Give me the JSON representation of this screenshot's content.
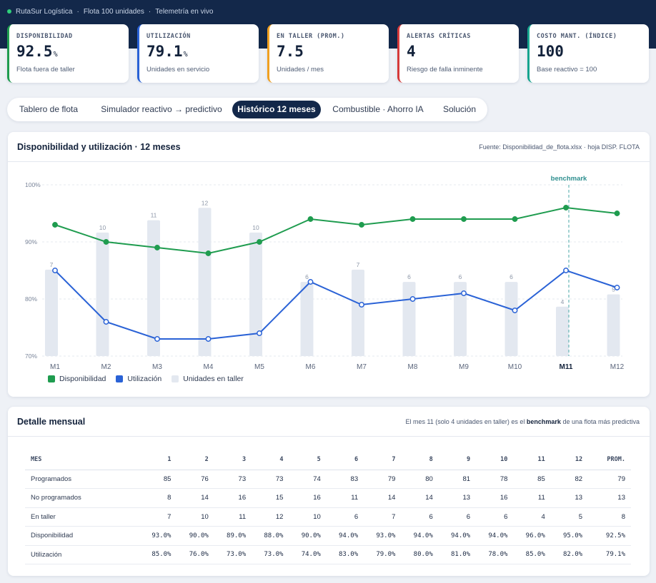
{
  "header": {
    "company": "RutaSur Logística",
    "fleet": "Flota 100 unidades",
    "mode": "Telemetría en vivo",
    "separator": "·"
  },
  "kpis": [
    {
      "label": "DISPONIBILIDAD",
      "value": "92.5",
      "unit": "%",
      "sub": "Flota fuera de taller",
      "color": "#1f9c4f"
    },
    {
      "label": "UTILIZACIÓN",
      "value": "79.1",
      "unit": "%",
      "sub": "Unidades en servicio",
      "color": "#2a62d6"
    },
    {
      "label": "EN TALLER (PROM.)",
      "value": "7.5",
      "unit": "",
      "sub": "Unidades / mes",
      "color": "#f0a020"
    },
    {
      "label": "ALERTAS CRÍTICAS",
      "value": "4",
      "unit": "",
      "sub": "Riesgo de falla inminente",
      "color": "#d63a3a"
    },
    {
      "label": "COSTO MANT. (ÍNDICE)",
      "value": "100",
      "unit": "",
      "sub": "Base reactivo = 100",
      "color": "#17a58f"
    }
  ],
  "tabs": [
    {
      "label": "Tablero de flota",
      "active": false
    },
    {
      "label": "Simulador reactivo → predictivo",
      "active": false
    },
    {
      "label": "Histórico 12 meses",
      "active": true
    },
    {
      "label": "Combustible · Ahorro IA",
      "active": false
    },
    {
      "label": "Solución",
      "active": false
    }
  ],
  "chart_panel": {
    "title": "Disponibilidad y utilización · 12 meses",
    "source": "Fuente: Disponibilidad_de_flota.xlsx · hoja DISP. FLOTA"
  },
  "chart_data": {
    "type": "line",
    "categories": [
      "M1",
      "M2",
      "M3",
      "M4",
      "M5",
      "M6",
      "M7",
      "M8",
      "M9",
      "M10",
      "M11",
      "M12"
    ],
    "highlight_category": "M11",
    "benchmark_label": "benchmark",
    "y_ticks": [
      "100%",
      "90%",
      "80%",
      "70%"
    ],
    "ylim": [
      70,
      100
    ],
    "series": [
      {
        "name": "Disponibilidad",
        "color": "#1f9c4f",
        "values": [
          93,
          90,
          89,
          88,
          90,
          94,
          93,
          94,
          94,
          94,
          96,
          95
        ]
      },
      {
        "name": "Utilización",
        "color": "#2a62d6",
        "values": [
          85,
          76,
          73,
          73,
          74,
          83,
          79,
          80,
          81,
          78,
          85,
          82
        ]
      }
    ],
    "bars": {
      "name": "Unidades en taller",
      "color": "#e3e8f0",
      "values": [
        7,
        10,
        11,
        12,
        10,
        6,
        7,
        6,
        6,
        6,
        4,
        5
      ],
      "max": 13
    },
    "legend_position": "bottom-left",
    "grid": true
  },
  "detail_panel": {
    "title": "Detalle mensual",
    "note_pre": "El mes 11 (solo 4 unidades en taller) es el",
    "note_bold": "benchmark",
    "note_post": "de una flota más predictiva"
  },
  "table": {
    "headers": [
      "MES",
      "1",
      "2",
      "3",
      "4",
      "5",
      "6",
      "7",
      "8",
      "9",
      "10",
      "11",
      "12",
      "PROM."
    ],
    "rows": [
      {
        "label": "Programados",
        "mono": false,
        "cells": [
          "85",
          "76",
          "73",
          "73",
          "74",
          "83",
          "79",
          "80",
          "81",
          "78",
          "85",
          "82",
          "79"
        ]
      },
      {
        "label": "No programados",
        "mono": false,
        "cells": [
          "8",
          "14",
          "16",
          "15",
          "16",
          "11",
          "14",
          "14",
          "13",
          "16",
          "11",
          "13",
          "13"
        ]
      },
      {
        "label": "En taller",
        "mono": false,
        "cells": [
          "7",
          "10",
          "11",
          "12",
          "10",
          "6",
          "7",
          "6",
          "6",
          "6",
          "4",
          "5",
          "8"
        ]
      },
      {
        "label": "Disponibilidad",
        "mono": true,
        "cells": [
          "93.0%",
          "90.0%",
          "89.0%",
          "88.0%",
          "90.0%",
          "94.0%",
          "93.0%",
          "94.0%",
          "94.0%",
          "94.0%",
          "96.0%",
          "95.0%",
          "92.5%"
        ]
      },
      {
        "label": "Utilización",
        "mono": true,
        "cells": [
          "85.0%",
          "76.0%",
          "73.0%",
          "73.0%",
          "74.0%",
          "83.0%",
          "79.0%",
          "80.0%",
          "81.0%",
          "78.0%",
          "85.0%",
          "82.0%",
          "79.1%"
        ]
      }
    ]
  }
}
